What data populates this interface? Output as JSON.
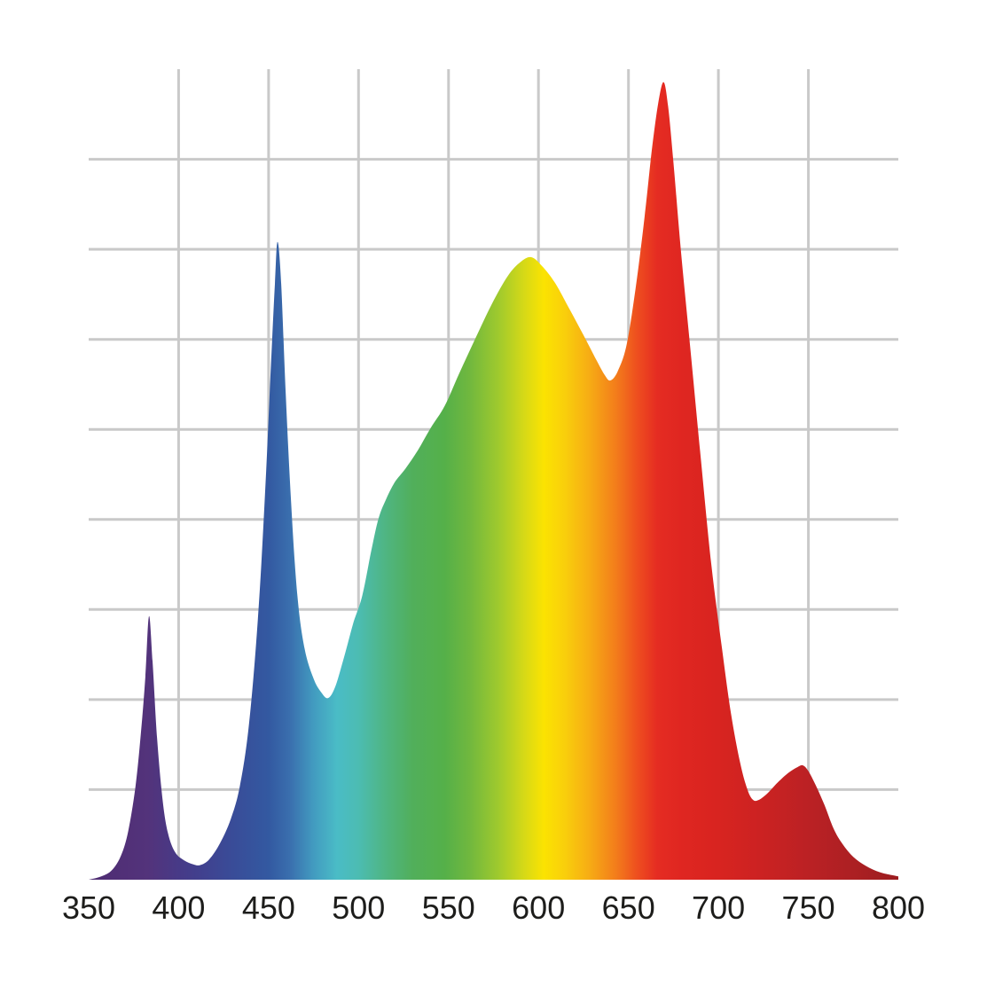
{
  "chart_data": {
    "type": "area",
    "title": "",
    "xlabel": "",
    "ylabel": "",
    "legend": null,
    "x_axis": {
      "min": 350,
      "max": 800,
      "ticks": [
        350,
        400,
        450,
        500,
        550,
        600,
        650,
        700,
        750,
        800
      ],
      "tick_labels": [
        "350",
        "400",
        "450",
        "500",
        "550",
        "600",
        "650",
        "700",
        "750",
        "800"
      ]
    },
    "y_axis": {
      "min": 0,
      "max": 1,
      "tick_labels_visible": false,
      "grid_divisions": 9
    },
    "grid": {
      "visible": true,
      "color": "#c9c9c9",
      "line_width": 3,
      "vertical_lines_nm": [
        400,
        450,
        500,
        550,
        600,
        650,
        700,
        750
      ],
      "horizontal_lines_count": 8
    },
    "styles": {
      "background_color": "#ffffff",
      "tick_label_color": "#1d1d1b"
    },
    "series": [
      {
        "name": "spectral-power-distribution",
        "peaks": [
          {
            "wavelength_nm": 383.5,
            "intensity": 0.325
          },
          {
            "wavelength_nm": 455,
            "intensity": 0.787
          },
          {
            "wavelength_nm": 596,
            "intensity": 0.768
          },
          {
            "wavelength_nm": 669.5,
            "intensity": 0.984
          },
          {
            "wavelength_nm": 747,
            "intensity": 0.141
          }
        ],
        "points": [
          [
            350,
            0.0
          ],
          [
            357,
            0.004
          ],
          [
            363,
            0.012
          ],
          [
            368,
            0.03
          ],
          [
            372,
            0.06
          ],
          [
            376,
            0.115
          ],
          [
            379,
            0.18
          ],
          [
            381.5,
            0.25
          ],
          [
            383.5,
            0.325
          ],
          [
            385.5,
            0.27
          ],
          [
            388,
            0.175
          ],
          [
            391,
            0.1
          ],
          [
            394,
            0.058
          ],
          [
            398,
            0.034
          ],
          [
            403,
            0.024
          ],
          [
            408,
            0.019
          ],
          [
            412,
            0.018
          ],
          [
            417,
            0.025
          ],
          [
            423,
            0.045
          ],
          [
            429,
            0.075
          ],
          [
            434,
            0.115
          ],
          [
            439,
            0.19
          ],
          [
            444,
            0.32
          ],
          [
            448,
            0.475
          ],
          [
            451,
            0.62
          ],
          [
            453.5,
            0.735
          ],
          [
            455,
            0.787
          ],
          [
            457,
            0.735
          ],
          [
            459.5,
            0.6
          ],
          [
            462.5,
            0.465
          ],
          [
            466,
            0.35
          ],
          [
            470,
            0.285
          ],
          [
            475,
            0.248
          ],
          [
            479,
            0.232
          ],
          [
            483,
            0.224
          ],
          [
            487,
            0.238
          ],
          [
            492,
            0.275
          ],
          [
            497,
            0.316
          ],
          [
            502,
            0.35
          ],
          [
            507,
            0.405
          ],
          [
            511,
            0.445
          ],
          [
            515,
            0.468
          ],
          [
            520,
            0.49
          ],
          [
            526,
            0.507
          ],
          [
            533,
            0.53
          ],
          [
            540,
            0.557
          ],
          [
            548,
            0.585
          ],
          [
            556,
            0.625
          ],
          [
            565,
            0.668
          ],
          [
            574,
            0.71
          ],
          [
            583,
            0.745
          ],
          [
            590,
            0.762
          ],
          [
            596,
            0.768
          ],
          [
            602,
            0.757
          ],
          [
            609,
            0.737
          ],
          [
            617,
            0.705
          ],
          [
            625,
            0.672
          ],
          [
            632,
            0.642
          ],
          [
            637,
            0.622
          ],
          [
            640,
            0.616
          ],
          [
            644,
            0.627
          ],
          [
            649,
            0.66
          ],
          [
            654,
            0.73
          ],
          [
            659,
            0.818
          ],
          [
            663,
            0.9
          ],
          [
            666.5,
            0.957
          ],
          [
            669.5,
            0.984
          ],
          [
            672,
            0.955
          ],
          [
            675,
            0.885
          ],
          [
            679,
            0.78
          ],
          [
            684,
            0.665
          ],
          [
            690,
            0.525
          ],
          [
            696,
            0.39
          ],
          [
            702,
            0.285
          ],
          [
            707,
            0.205
          ],
          [
            712,
            0.145
          ],
          [
            716,
            0.112
          ],
          [
            719,
            0.099
          ],
          [
            722,
            0.098
          ],
          [
            727,
            0.106
          ],
          [
            733,
            0.12
          ],
          [
            739,
            0.132
          ],
          [
            744,
            0.139
          ],
          [
            747,
            0.141
          ],
          [
            750,
            0.134
          ],
          [
            754,
            0.117
          ],
          [
            759,
            0.092
          ],
          [
            764,
            0.063
          ],
          [
            769,
            0.044
          ],
          [
            775,
            0.028
          ],
          [
            782,
            0.017
          ],
          [
            790,
            0.009
          ],
          [
            800,
            0.004
          ]
        ]
      }
    ],
    "spectrum_gradient": [
      {
        "nm": 350,
        "color": "#4e2c72"
      },
      {
        "nm": 383,
        "color": "#53337b"
      },
      {
        "nm": 400,
        "color": "#473a87"
      },
      {
        "nm": 412,
        "color": "#41408e"
      },
      {
        "nm": 430,
        "color": "#394c98"
      },
      {
        "nm": 450,
        "color": "#3359a1"
      },
      {
        "nm": 462,
        "color": "#3a6fae"
      },
      {
        "nm": 475,
        "color": "#429bc0"
      },
      {
        "nm": 488,
        "color": "#4abcc6"
      },
      {
        "nm": 500,
        "color": "#4cbcb2"
      },
      {
        "nm": 515,
        "color": "#4fb582"
      },
      {
        "nm": 530,
        "color": "#51af5b"
      },
      {
        "nm": 548,
        "color": "#55b049"
      },
      {
        "nm": 562,
        "color": "#71b83e"
      },
      {
        "nm": 578,
        "color": "#a0ca2d"
      },
      {
        "nm": 592,
        "color": "#d6d917"
      },
      {
        "nm": 603,
        "color": "#fbe301"
      },
      {
        "nm": 615,
        "color": "#f9ce0c"
      },
      {
        "nm": 628,
        "color": "#f7ad14"
      },
      {
        "nm": 643,
        "color": "#f37d1b"
      },
      {
        "nm": 655,
        "color": "#ee4e1f"
      },
      {
        "nm": 666,
        "color": "#e52c22"
      },
      {
        "nm": 680,
        "color": "#df2621"
      },
      {
        "nm": 700,
        "color": "#d82420"
      },
      {
        "nm": 725,
        "color": "#cb2222"
      },
      {
        "nm": 750,
        "color": "#bb2124"
      },
      {
        "nm": 775,
        "color": "#ac2023"
      },
      {
        "nm": 800,
        "color": "#9c1c1f"
      }
    ]
  }
}
